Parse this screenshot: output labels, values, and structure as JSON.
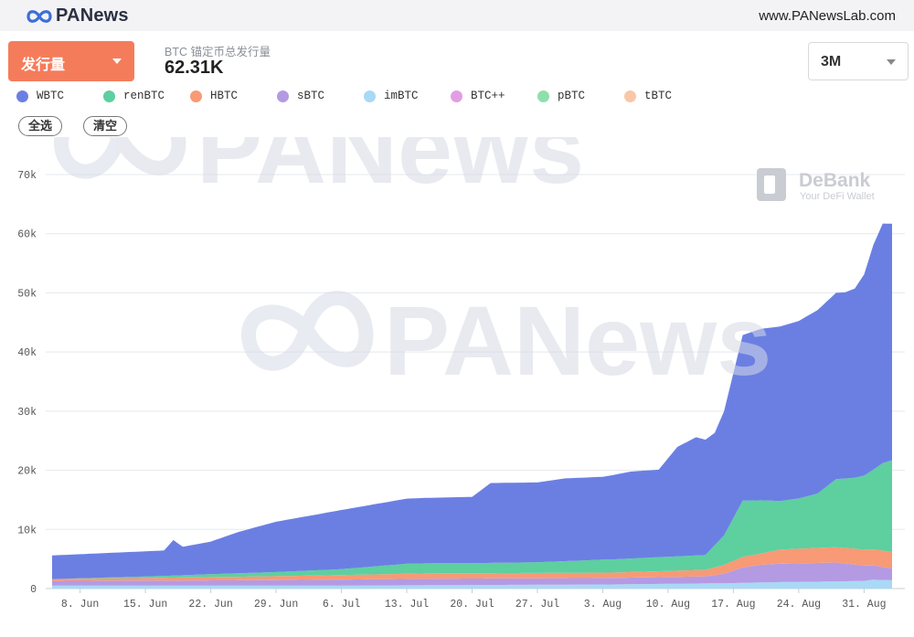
{
  "header": {
    "brand": "PANews",
    "url": "www.PANewsLab.com"
  },
  "controls": {
    "metric_select": "发行量",
    "summary_caption": "BTC 锚定币总发行量",
    "summary_value": "62.31K",
    "range_select": "3M",
    "select_all": "全选",
    "clear": "清空"
  },
  "legend": [
    {
      "name": "WBTC",
      "color": "#6b7fe3"
    },
    {
      "name": "renBTC",
      "color": "#5ecf9f"
    },
    {
      "name": "HBTC",
      "color": "#f79a75"
    },
    {
      "name": "sBTC",
      "color": "#b49ae3"
    },
    {
      "name": "imBTC",
      "color": "#a8d9f5"
    },
    {
      "name": "BTC++",
      "color": "#e29ee3"
    },
    {
      "name": "pBTC",
      "color": "#8fdfae"
    },
    {
      "name": "tBTC",
      "color": "#f9c7a8"
    }
  ],
  "watermarks": {
    "main": "PANews",
    "debank_title": "DeBank",
    "debank_sub": "Your DeFi Wallet"
  },
  "chart_data": {
    "type": "area",
    "stacked": true,
    "x_label_unit": "day index from 5 Jun",
    "categories": [
      "8. Jun",
      "15. Jun",
      "22. Jun",
      "29. Jun",
      "6. Jul",
      "13. Jul",
      "20. Jul",
      "27. Jul",
      "3. Aug",
      "10. Aug",
      "17. Aug",
      "24. Aug",
      "31. Aug"
    ],
    "category_x": [
      3,
      10,
      17,
      24,
      31,
      38,
      45,
      52,
      59,
      66,
      73,
      80,
      87
    ],
    "x_range": [
      0,
      90
    ],
    "y_ticks": [
      "0",
      "10k",
      "20k",
      "30k",
      "40k",
      "50k",
      "60k",
      "70k"
    ],
    "ylim": [
      0,
      70000
    ],
    "series": [
      {
        "name": "imBTC",
        "color": "#a8d9f5",
        "x": [
          0,
          30,
          60,
          72,
          78,
          84,
          87,
          88,
          90
        ],
        "values": [
          500,
          500,
          700,
          900,
          1100,
          1200,
          1300,
          1500,
          1400
        ]
      },
      {
        "name": "sBTC",
        "color": "#b49ae3",
        "x": [
          0,
          20,
          40,
          60,
          70,
          72,
          74,
          76,
          78,
          84,
          90
        ],
        "values": [
          800,
          900,
          1100,
          1100,
          1200,
          1600,
          2600,
          3000,
          3100,
          3200,
          2000
        ]
      },
      {
        "name": "HBTC",
        "color": "#f79a75",
        "x": [
          0,
          20,
          40,
          60,
          70,
          72,
          74,
          76,
          78,
          84,
          90
        ],
        "values": [
          300,
          600,
          900,
          900,
          1100,
          1500,
          1800,
          1900,
          2400,
          2600,
          2800
        ]
      },
      {
        "name": "renBTC",
        "color": "#5ecf9f",
        "x": [
          0,
          12,
          17,
          24,
          31,
          38,
          45,
          52,
          59,
          66,
          70,
          72,
          74,
          76,
          78,
          80,
          82,
          84,
          86,
          87,
          88,
          89,
          90
        ],
        "values": [
          0,
          300,
          500,
          700,
          1000,
          1700,
          1700,
          1800,
          2200,
          2400,
          2500,
          5000,
          9500,
          9000,
          8200,
          8500,
          9200,
          11500,
          12000,
          12500,
          13500,
          14800,
          15500
        ]
      },
      {
        "name": "WBTC",
        "color": "#6b7fe3",
        "x": [
          0,
          12,
          13,
          14,
          17,
          20,
          24,
          31,
          38,
          45,
          47,
          52,
          55,
          59,
          62,
          65,
          67,
          69,
          71,
          72,
          74,
          76,
          78,
          80,
          82,
          84,
          85,
          86,
          87,
          88,
          89,
          90
        ],
        "values": [
          4000,
          4300,
          6000,
          4800,
          5500,
          7000,
          8500,
          10000,
          11000,
          11200,
          13500,
          13500,
          14000,
          14000,
          14700,
          14800,
          18500,
          20000,
          19000,
          21000,
          28000,
          29000,
          29500,
          30000,
          31000,
          31500,
          31500,
          32000,
          34000,
          38000,
          40500,
          40000
        ]
      }
    ]
  }
}
